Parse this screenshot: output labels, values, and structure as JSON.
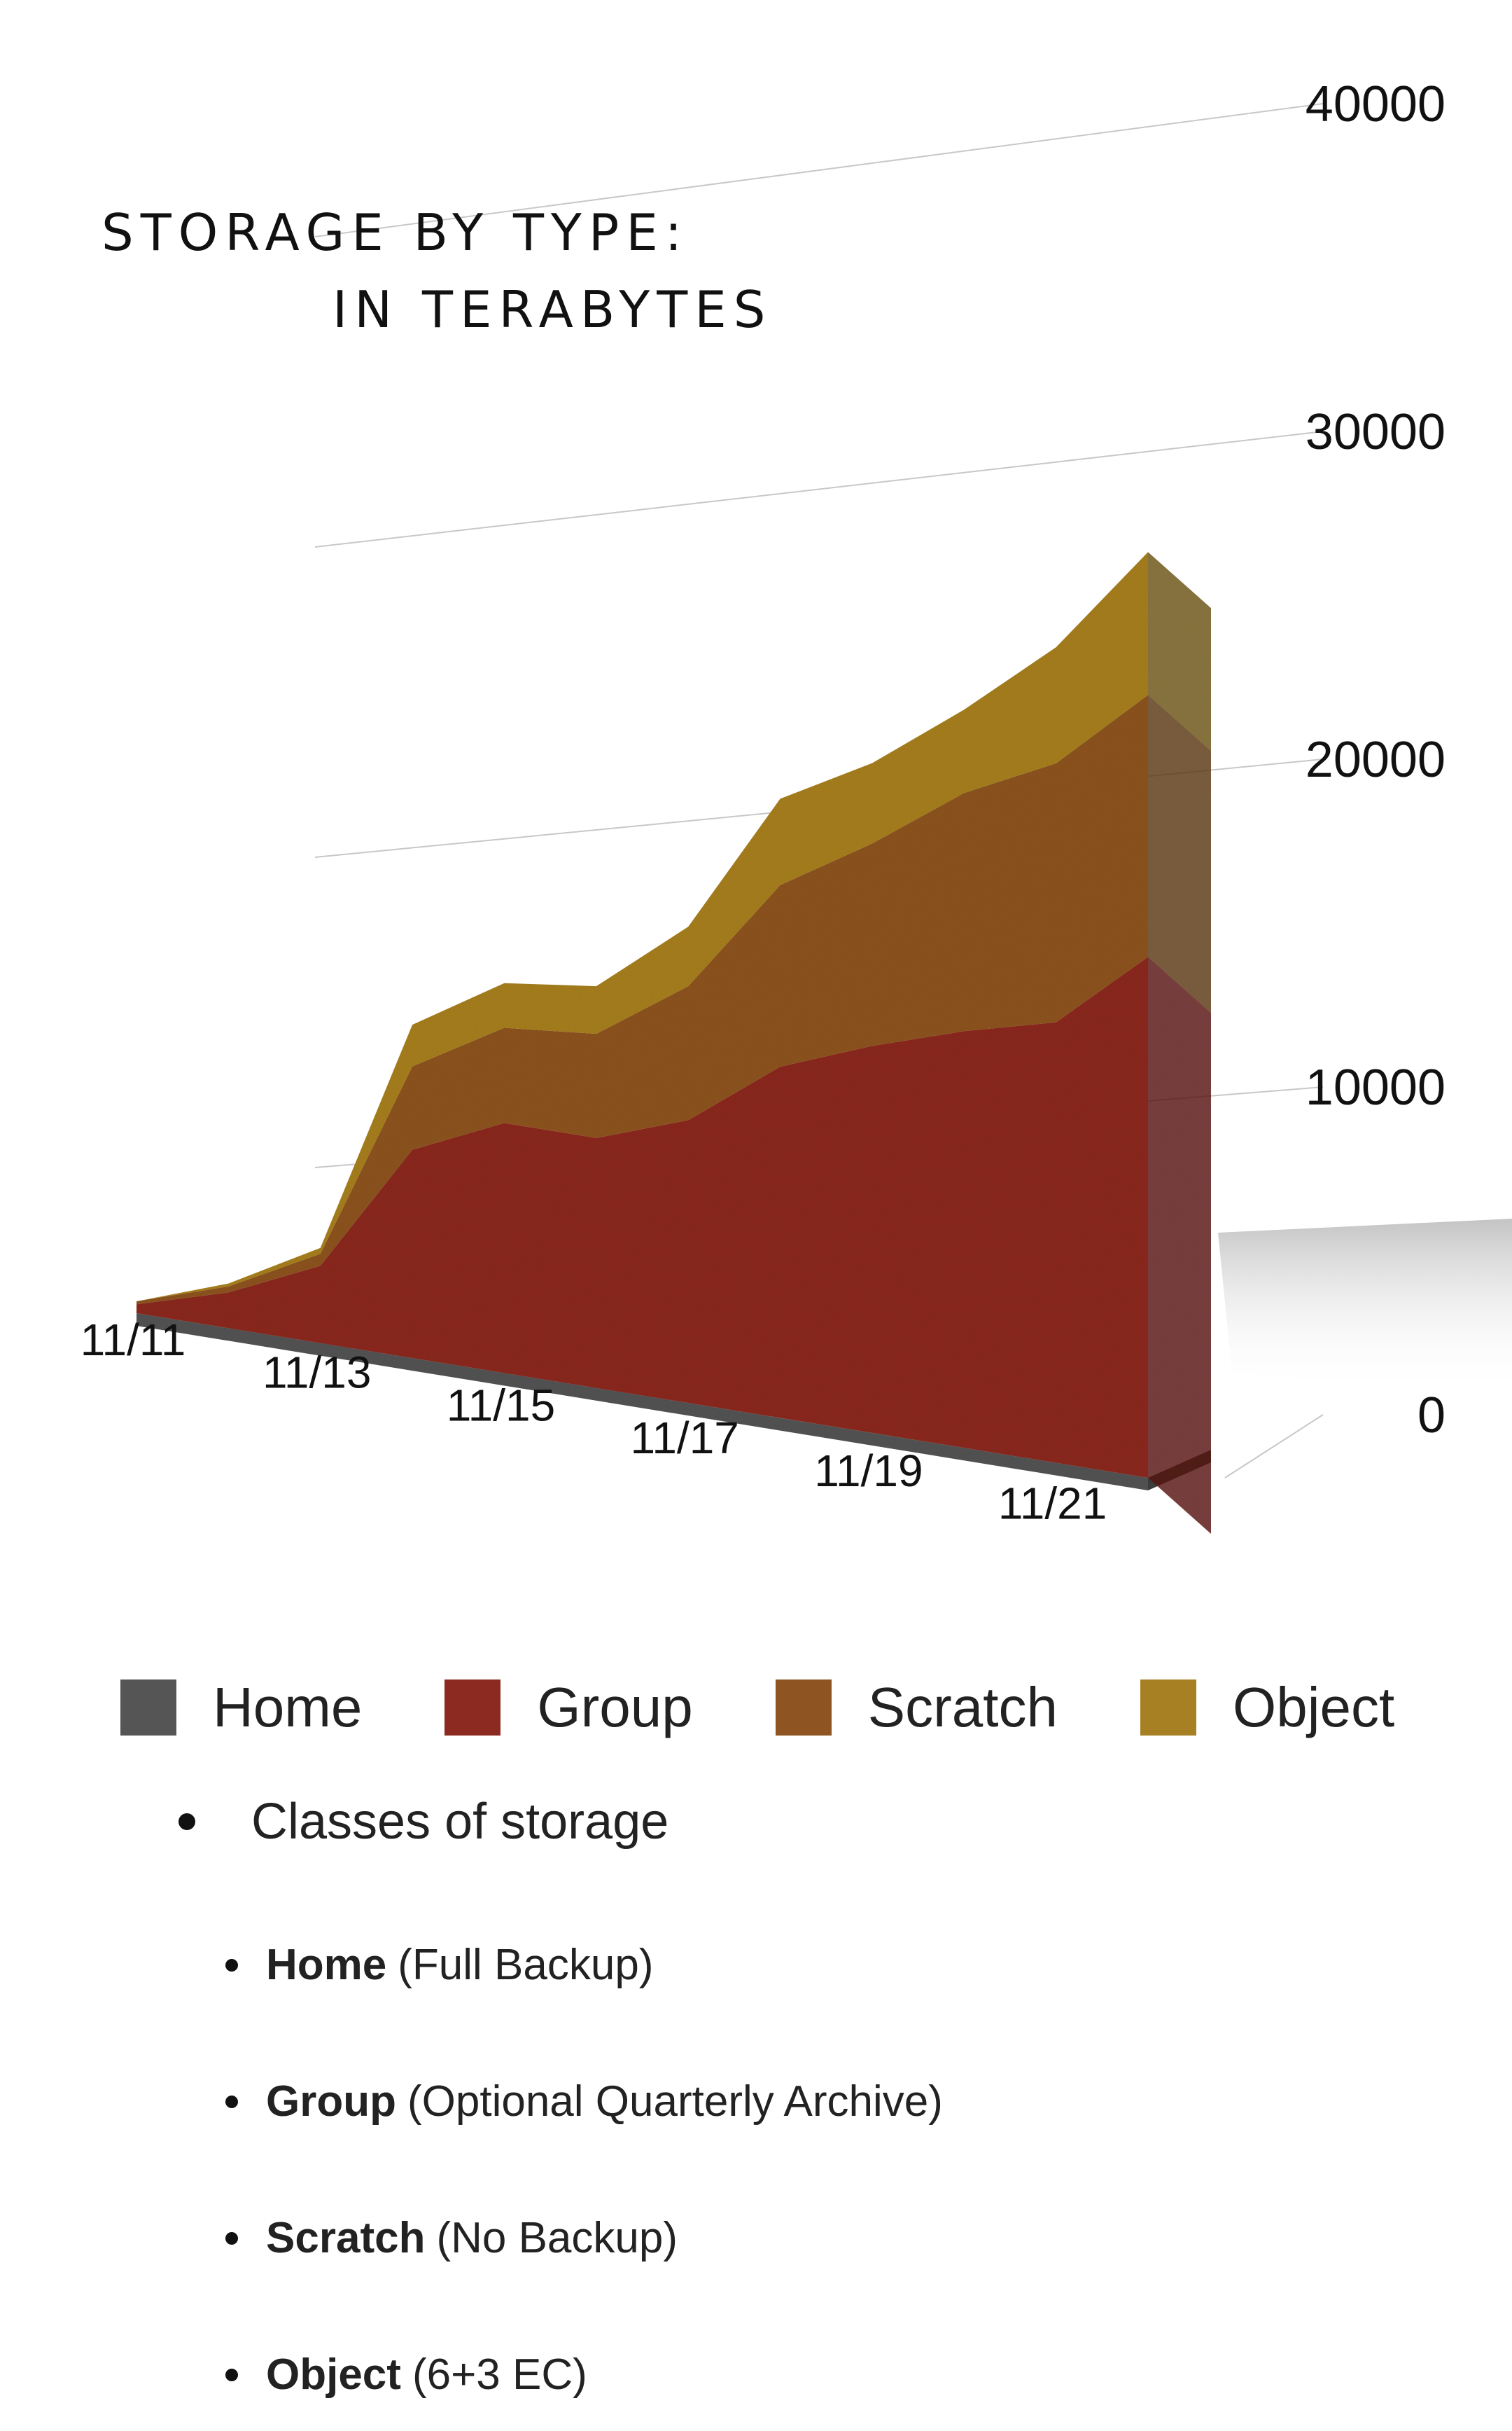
{
  "title": {
    "line1": "STORAGE BY TYPE:",
    "line2": "IN TERABYTES"
  },
  "chart_data": {
    "type": "area",
    "stacked": true,
    "x": [
      "11/11",
      "11/12",
      "11/13",
      "11/14",
      "11/15",
      "11/16",
      "11/17",
      "11/18",
      "11/19",
      "11/20",
      "11/21",
      "11/22"
    ],
    "x_tick_labels": [
      "11/11",
      "11/13",
      "11/15",
      "11/17",
      "11/19",
      "11/21"
    ],
    "y_ticks": [
      0,
      10000,
      20000,
      30000,
      40000
    ],
    "ylim": [
      0,
      40000
    ],
    "series": [
      {
        "name": "Home",
        "color": "#555555",
        "values": [
          0,
          0,
          0,
          0,
          0,
          0,
          0,
          0,
          0,
          0,
          0,
          0
        ]
      },
      {
        "name": "Group",
        "color": "#8c2a21",
        "values": [
          300,
          1200,
          2600,
          7000,
          8400,
          8400,
          9500,
          11800,
          13000,
          14000,
          14800,
          17500
        ]
      },
      {
        "name": "Scratch",
        "color": "#8e5522",
        "values": [
          100,
          200,
          400,
          2800,
          3200,
          3500,
          4500,
          6100,
          6800,
          8000,
          8700,
          8800
        ]
      },
      {
        "name": "Object",
        "color": "#a88024",
        "values": [
          0,
          100,
          200,
          1400,
          1500,
          1600,
          2000,
          2900,
          2700,
          2800,
          3900,
          4800
        ]
      }
    ]
  },
  "bullets": {
    "main": "Classes of storage",
    "items": [
      {
        "bold": "Home",
        "rest": "(Full Backup)"
      },
      {
        "bold": "Group",
        "rest": "(Optional Quarterly Archive)"
      },
      {
        "bold": "Scratch",
        "rest": "(No Backup)"
      },
      {
        "bold": "Object",
        "rest": "(6+3 EC)"
      }
    ]
  }
}
